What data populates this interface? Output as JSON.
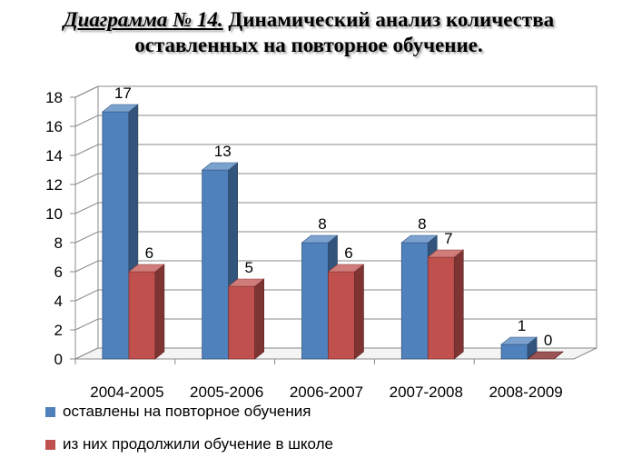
{
  "colors": {
    "series1": "#4F81BD",
    "series2": "#C0504D",
    "series2_zero": "#7B1B1B"
  },
  "chart_data": {
    "type": "bar",
    "title_prefix": "Диаграмма № 14.",
    "title": "Динамический анализ количества оставленных на повторное обучение.",
    "categories": [
      "2004-2005",
      "2005-2006",
      "2006-2007",
      "2007-2008",
      "2008-2009"
    ],
    "series": [
      {
        "name": "оставлены на повторное обучения",
        "values": [
          17,
          13,
          8,
          8,
          1
        ]
      },
      {
        "name": "из них продолжили обучение в школе",
        "values": [
          6,
          5,
          6,
          7,
          0
        ]
      }
    ],
    "ylim": [
      0,
      18
    ],
    "yticks": [
      0,
      2,
      4,
      6,
      8,
      10,
      12,
      14,
      16,
      18
    ],
    "grid": true,
    "legend_position": "bottom",
    "style": "3d-clustered-column"
  }
}
